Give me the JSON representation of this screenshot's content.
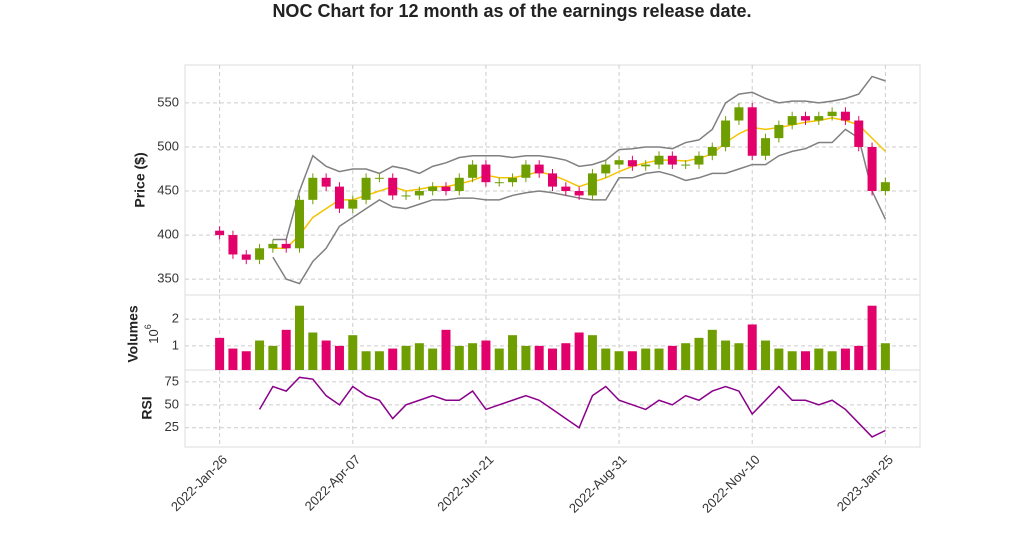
{
  "chart_data": {
    "type": "candlestick",
    "title": "NOC Chart for 12 month as of the earnings release date.",
    "x": [
      0,
      5,
      10,
      15,
      20,
      25,
      30,
      35,
      40,
      45,
      50,
      55,
      60,
      65,
      70,
      75,
      80,
      85,
      90,
      95,
      100,
      105,
      110,
      115,
      120,
      125,
      130,
      135,
      140,
      145,
      150,
      155,
      160,
      165,
      170,
      175,
      180,
      185,
      190,
      195,
      200,
      205,
      210,
      215,
      220,
      225,
      230,
      235,
      240,
      245,
      250
    ],
    "xlim": [
      -13,
      263
    ],
    "xticks": [
      {
        "value": 0,
        "label": "2022-Jan-26"
      },
      {
        "value": 50,
        "label": "2022-Apr-07"
      },
      {
        "value": 100,
        "label": "2022-Jun-21"
      },
      {
        "value": 150,
        "label": "2022-Aug-31"
      },
      {
        "value": 200,
        "label": "2022-Nov-10"
      },
      {
        "value": 250,
        "label": "2023-Jan-25"
      }
    ],
    "up_color": "#6f9e00",
    "down_color": "#e2006b",
    "grid": true,
    "price": {
      "ylabel": "Price ($)",
      "ylim": [
        332,
        593
      ],
      "yticks": [
        350,
        400,
        450,
        500,
        550
      ],
      "open": [
        405,
        400,
        378,
        372,
        385,
        390,
        385,
        440,
        465,
        455,
        430,
        440,
        465,
        465,
        445,
        445,
        450,
        455,
        450,
        465,
        480,
        460,
        460,
        465,
        480,
        470,
        455,
        450,
        445,
        470,
        480,
        485,
        478,
        480,
        490,
        480,
        480,
        490,
        500,
        530,
        545,
        490,
        510,
        525,
        535,
        530,
        535,
        540,
        530,
        500,
        450
      ],
      "high": [
        410,
        405,
        383,
        390,
        395,
        395,
        445,
        470,
        470,
        460,
        445,
        470,
        470,
        470,
        450,
        455,
        460,
        460,
        470,
        485,
        485,
        465,
        470,
        485,
        485,
        475,
        460,
        455,
        475,
        485,
        490,
        490,
        485,
        495,
        495,
        485,
        495,
        505,
        535,
        550,
        550,
        515,
        530,
        540,
        540,
        540,
        545,
        545,
        535,
        505,
        465
      ],
      "low": [
        395,
        373,
        367,
        367,
        380,
        380,
        380,
        435,
        450,
        425,
        425,
        435,
        460,
        440,
        440,
        440,
        445,
        445,
        445,
        460,
        455,
        455,
        455,
        460,
        465,
        450,
        445,
        440,
        440,
        465,
        475,
        473,
        473,
        475,
        475,
        475,
        475,
        485,
        495,
        525,
        485,
        485,
        505,
        520,
        525,
        525,
        530,
        525,
        495,
        445,
        445
      ],
      "close": [
        400,
        378,
        372,
        385,
        390,
        385,
        440,
        465,
        455,
        430,
        440,
        465,
        465,
        445,
        445,
        450,
        455,
        450,
        465,
        480,
        460,
        460,
        465,
        480,
        470,
        455,
        450,
        445,
        470,
        480,
        485,
        478,
        480,
        490,
        480,
        480,
        490,
        500,
        530,
        545,
        490,
        510,
        525,
        535,
        530,
        535,
        540,
        530,
        500,
        450,
        460
      ],
      "series": [
        {
          "color": "#f5c400",
          "values": [
            null,
            null,
            null,
            null,
            385,
            385,
            400,
            420,
            430,
            440,
            440,
            445,
            450,
            455,
            450,
            452,
            455,
            455,
            458,
            462,
            468,
            465,
            465,
            468,
            472,
            468,
            462,
            455,
            460,
            465,
            472,
            478,
            482,
            485,
            485,
            484,
            487,
            492,
            505,
            515,
            522,
            520,
            522,
            525,
            528,
            530,
            533,
            530,
            525,
            510,
            495
          ]
        },
        {
          "color": "#808080",
          "values": [
            null,
            null,
            null,
            null,
            395,
            395,
            450,
            490,
            478,
            472,
            475,
            475,
            470,
            478,
            475,
            470,
            478,
            482,
            488,
            490,
            490,
            490,
            488,
            490,
            490,
            488,
            485,
            478,
            480,
            485,
            497,
            498,
            500,
            500,
            498,
            505,
            508,
            520,
            550,
            560,
            562,
            555,
            550,
            552,
            552,
            550,
            552,
            555,
            560,
            580,
            575
          ]
        },
        {
          "color": "#808080",
          "values": [
            null,
            null,
            null,
            null,
            375,
            350,
            345,
            370,
            385,
            410,
            420,
            430,
            440,
            432,
            430,
            435,
            440,
            440,
            442,
            442,
            440,
            440,
            445,
            448,
            450,
            448,
            445,
            442,
            440,
            440,
            465,
            465,
            470,
            472,
            468,
            462,
            465,
            470,
            470,
            475,
            480,
            480,
            490,
            495,
            498,
            505,
            505,
            520,
            510,
            450,
            418
          ]
        }
      ]
    },
    "volume": {
      "ylabel": "Volumes",
      "scale_label": "10",
      "scale_exponent": "6",
      "ylim": [
        0.1,
        2.9
      ],
      "yticks": [
        1,
        2
      ],
      "values": [
        1.3,
        0.9,
        0.8,
        1.2,
        1.0,
        1.6,
        2.5,
        1.5,
        1.2,
        1.0,
        1.4,
        0.8,
        0.8,
        0.9,
        1.0,
        1.1,
        0.9,
        1.6,
        1.0,
        1.1,
        1.2,
        0.9,
        1.4,
        1.0,
        1.0,
        0.9,
        1.1,
        1.5,
        1.4,
        0.9,
        0.8,
        0.8,
        0.9,
        0.9,
        1.0,
        1.1,
        1.3,
        1.6,
        1.2,
        1.1,
        1.8,
        1.2,
        0.9,
        0.8,
        0.8,
        0.9,
        0.8,
        0.9,
        1.0,
        2.5,
        1.1
      ]
    },
    "rsi": {
      "ylabel": "RSI",
      "ylim": [
        4,
        88
      ],
      "yticks": [
        25,
        50,
        75
      ],
      "color": "#8b008b",
      "values": [
        null,
        null,
        null,
        45,
        70,
        65,
        80,
        78,
        60,
        50,
        70,
        60,
        55,
        35,
        50,
        55,
        60,
        55,
        55,
        65,
        45,
        50,
        55,
        60,
        55,
        45,
        35,
        25,
        60,
        70,
        55,
        50,
        45,
        55,
        50,
        60,
        55,
        65,
        70,
        65,
        40,
        55,
        70,
        55,
        55,
        50,
        55,
        45,
        30,
        15,
        22
      ]
    }
  }
}
